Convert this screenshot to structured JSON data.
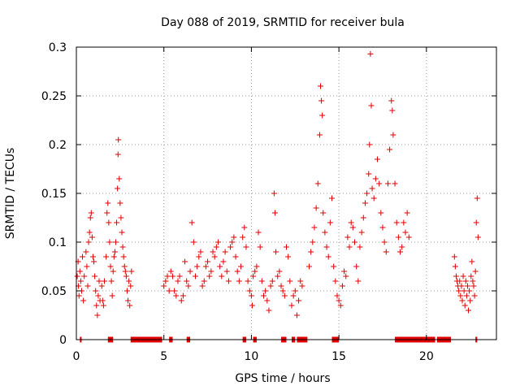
{
  "chart_data": {
    "type": "scatter",
    "title": "Day 088 of 2019, SRMTID for receiver bula",
    "xlabel": "GPS time / hours",
    "ylabel": "SRMTID / TECUs",
    "xlim": [
      0,
      24
    ],
    "ylim": [
      0,
      0.3
    ],
    "xticks": [
      0,
      5,
      10,
      15,
      20
    ],
    "yticks": [
      0,
      0.05,
      0.1,
      0.15,
      0.2,
      0.25,
      0.3
    ],
    "xtick_labels": [
      "0",
      "5",
      "10",
      "15",
      "20"
    ],
    "ytick_labels": [
      "0",
      "0.05",
      "0.1",
      "0.15",
      "0.2",
      "0.25",
      "0.3"
    ],
    "grid": true,
    "marker": "+",
    "color": "#e00000",
    "series": [
      {
        "name": "SRMTID",
        "points": [
          [
            0.05,
            0.065
          ],
          [
            0.1,
            0.08
          ],
          [
            0.12,
            0.055
          ],
          [
            0.15,
            0.045
          ],
          [
            0.2,
            0.07
          ],
          [
            0.25,
            0.06
          ],
          [
            0.3,
            0.05
          ],
          [
            0.35,
            0.085
          ],
          [
            0.4,
            0.04
          ],
          [
            0.45,
            0.065
          ],
          [
            0.55,
            0.09
          ],
          [
            0.6,
            0.075
          ],
          [
            0.65,
            0.055
          ],
          [
            0.7,
            0.1
          ],
          [
            0.75,
            0.11
          ],
          [
            0.8,
            0.125
          ],
          [
            0.85,
            0.13
          ],
          [
            0.9,
            0.105
          ],
          [
            0.95,
            0.085
          ],
          [
            1.0,
            0.08
          ],
          [
            1.05,
            0.065
          ],
          [
            1.1,
            0.05
          ],
          [
            1.15,
            0.035
          ],
          [
            1.2,
            0.025
          ],
          [
            1.25,
            0.045
          ],
          [
            1.3,
            0.06
          ],
          [
            1.35,
            0.04
          ],
          [
            1.45,
            0.055
          ],
          [
            1.5,
            0.04
          ],
          [
            1.55,
            0.035
          ],
          [
            1.6,
            0.06
          ],
          [
            1.7,
            0.085
          ],
          [
            1.75,
            0.13
          ],
          [
            1.8,
            0.14
          ],
          [
            1.85,
            0.12
          ],
          [
            1.9,
            0.1
          ],
          [
            1.95,
            0.075
          ],
          [
            2.0,
            0.06
          ],
          [
            2.05,
            0.045
          ],
          [
            2.1,
            0.07
          ],
          [
            2.15,
            0.085
          ],
          [
            2.2,
            0.09
          ],
          [
            2.25,
            0.1
          ],
          [
            2.3,
            0.12
          ],
          [
            2.35,
            0.155
          ],
          [
            2.38,
            0.19
          ],
          [
            2.4,
            0.205
          ],
          [
            2.45,
            0.165
          ],
          [
            2.5,
            0.14
          ],
          [
            2.55,
            0.125
          ],
          [
            2.6,
            0.11
          ],
          [
            2.65,
            0.095
          ],
          [
            2.7,
            0.085
          ],
          [
            2.75,
            0.075
          ],
          [
            2.8,
            0.07
          ],
          [
            2.85,
            0.065
          ],
          [
            2.9,
            0.05
          ],
          [
            2.95,
            0.04
          ],
          [
            3.0,
            0.06
          ],
          [
            3.05,
            0.035
          ],
          [
            3.1,
            0.055
          ],
          [
            3.15,
            0.07
          ],
          [
            5.0,
            0.055
          ],
          [
            5.1,
            0.06
          ],
          [
            5.2,
            0.065
          ],
          [
            5.3,
            0.05
          ],
          [
            5.4,
            0.07
          ],
          [
            5.5,
            0.065
          ],
          [
            5.6,
            0.05
          ],
          [
            5.7,
            0.045
          ],
          [
            5.8,
            0.06
          ],
          [
            5.9,
            0.065
          ],
          [
            6.0,
            0.04
          ],
          [
            6.1,
            0.045
          ],
          [
            6.2,
            0.08
          ],
          [
            6.3,
            0.06
          ],
          [
            6.4,
            0.055
          ],
          [
            6.5,
            0.07
          ],
          [
            6.6,
            0.12
          ],
          [
            6.7,
            0.1
          ],
          [
            6.8,
            0.065
          ],
          [
            6.9,
            0.075
          ],
          [
            7.0,
            0.085
          ],
          [
            7.1,
            0.09
          ],
          [
            7.2,
            0.055
          ],
          [
            7.3,
            0.06
          ],
          [
            7.4,
            0.075
          ],
          [
            7.5,
            0.08
          ],
          [
            7.6,
            0.065
          ],
          [
            7.7,
            0.07
          ],
          [
            7.8,
            0.09
          ],
          [
            7.9,
            0.085
          ],
          [
            8.0,
            0.095
          ],
          [
            8.1,
            0.1
          ],
          [
            8.2,
            0.075
          ],
          [
            8.3,
            0.065
          ],
          [
            8.4,
            0.08
          ],
          [
            8.5,
            0.09
          ],
          [
            8.6,
            0.07
          ],
          [
            8.7,
            0.06
          ],
          [
            8.8,
            0.095
          ],
          [
            8.9,
            0.1
          ],
          [
            9.0,
            0.105
          ],
          [
            9.1,
            0.085
          ],
          [
            9.2,
            0.07
          ],
          [
            9.3,
            0.06
          ],
          [
            9.4,
            0.075
          ],
          [
            9.5,
            0.105
          ],
          [
            9.6,
            0.115
          ],
          [
            9.7,
            0.095
          ],
          [
            9.8,
            0.06
          ],
          [
            9.9,
            0.05
          ],
          [
            10.0,
            0.045
          ],
          [
            10.05,
            0.035
          ],
          [
            10.1,
            0.065
          ],
          [
            10.2,
            0.07
          ],
          [
            10.3,
            0.075
          ],
          [
            10.4,
            0.11
          ],
          [
            10.5,
            0.095
          ],
          [
            10.6,
            0.06
          ],
          [
            10.7,
            0.045
          ],
          [
            10.8,
            0.05
          ],
          [
            10.9,
            0.04
          ],
          [
            11.0,
            0.03
          ],
          [
            11.1,
            0.055
          ],
          [
            11.2,
            0.06
          ],
          [
            11.3,
            0.15
          ],
          [
            11.35,
            0.13
          ],
          [
            11.4,
            0.09
          ],
          [
            11.5,
            0.065
          ],
          [
            11.6,
            0.07
          ],
          [
            11.7,
            0.055
          ],
          [
            11.8,
            0.05
          ],
          [
            11.9,
            0.045
          ],
          [
            12.0,
            0.095
          ],
          [
            12.1,
            0.085
          ],
          [
            12.2,
            0.06
          ],
          [
            12.3,
            0.035
          ],
          [
            12.4,
            0.045
          ],
          [
            12.5,
            0.05
          ],
          [
            12.6,
            0.025
          ],
          [
            12.7,
            0.04
          ],
          [
            12.8,
            0.06
          ],
          [
            12.9,
            0.055
          ],
          [
            13.3,
            0.075
          ],
          [
            13.4,
            0.09
          ],
          [
            13.5,
            0.1
          ],
          [
            13.6,
            0.115
          ],
          [
            13.7,
            0.135
          ],
          [
            13.8,
            0.16
          ],
          [
            13.9,
            0.21
          ],
          [
            13.95,
            0.26
          ],
          [
            14.0,
            0.245
          ],
          [
            14.05,
            0.23
          ],
          [
            14.1,
            0.13
          ],
          [
            14.2,
            0.11
          ],
          [
            14.3,
            0.095
          ],
          [
            14.4,
            0.085
          ],
          [
            14.5,
            0.12
          ],
          [
            14.6,
            0.145
          ],
          [
            14.7,
            0.075
          ],
          [
            14.8,
            0.06
          ],
          [
            14.9,
            0.045
          ],
          [
            15.0,
            0.04
          ],
          [
            15.1,
            0.035
          ],
          [
            15.2,
            0.055
          ],
          [
            15.3,
            0.07
          ],
          [
            15.4,
            0.065
          ],
          [
            15.5,
            0.105
          ],
          [
            15.6,
            0.095
          ],
          [
            15.7,
            0.12
          ],
          [
            15.8,
            0.115
          ],
          [
            15.9,
            0.1
          ],
          [
            16.0,
            0.075
          ],
          [
            16.1,
            0.06
          ],
          [
            16.2,
            0.095
          ],
          [
            16.3,
            0.11
          ],
          [
            16.4,
            0.125
          ],
          [
            16.5,
            0.14
          ],
          [
            16.6,
            0.15
          ],
          [
            16.7,
            0.17
          ],
          [
            16.75,
            0.2
          ],
          [
            16.8,
            0.293
          ],
          [
            16.85,
            0.24
          ],
          [
            16.9,
            0.155
          ],
          [
            17.0,
            0.145
          ],
          [
            17.1,
            0.165
          ],
          [
            17.2,
            0.185
          ],
          [
            17.3,
            0.16
          ],
          [
            17.4,
            0.13
          ],
          [
            17.5,
            0.115
          ],
          [
            17.6,
            0.1
          ],
          [
            17.7,
            0.09
          ],
          [
            17.8,
            0.16
          ],
          [
            17.9,
            0.195
          ],
          [
            18.0,
            0.245
          ],
          [
            18.05,
            0.235
          ],
          [
            18.1,
            0.21
          ],
          [
            18.2,
            0.16
          ],
          [
            18.3,
            0.12
          ],
          [
            18.4,
            0.105
          ],
          [
            18.5,
            0.09
          ],
          [
            18.6,
            0.095
          ],
          [
            18.7,
            0.12
          ],
          [
            18.8,
            0.11
          ],
          [
            18.9,
            0.13
          ],
          [
            19.0,
            0.105
          ],
          [
            21.6,
            0.085
          ],
          [
            21.65,
            0.075
          ],
          [
            21.7,
            0.065
          ],
          [
            21.75,
            0.06
          ],
          [
            21.8,
            0.055
          ],
          [
            21.85,
            0.05
          ],
          [
            21.9,
            0.06
          ],
          [
            21.95,
            0.045
          ],
          [
            22.0,
            0.055
          ],
          [
            22.05,
            0.04
          ],
          [
            22.1,
            0.065
          ],
          [
            22.15,
            0.05
          ],
          [
            22.2,
            0.035
          ],
          [
            22.25,
            0.06
          ],
          [
            22.3,
            0.045
          ],
          [
            22.35,
            0.055
          ],
          [
            22.4,
            0.03
          ],
          [
            22.45,
            0.05
          ],
          [
            22.5,
            0.04
          ],
          [
            22.55,
            0.065
          ],
          [
            22.6,
            0.08
          ],
          [
            22.65,
            0.06
          ],
          [
            22.7,
            0.055
          ],
          [
            22.75,
            0.045
          ],
          [
            22.8,
            0.07
          ],
          [
            22.85,
            0.12
          ],
          [
            22.9,
            0.145
          ],
          [
            22.95,
            0.105
          ]
        ],
        "zero_ranges": [
          [
            0.2,
            0.3
          ],
          [
            1.8,
            2.1
          ],
          [
            3.1,
            4.9
          ],
          [
            5.3,
            5.5
          ],
          [
            6.3,
            6.5
          ],
          [
            9.5,
            9.7
          ],
          [
            10.1,
            10.3
          ],
          [
            11.7,
            12.0
          ],
          [
            12.3,
            12.5
          ],
          [
            12.6,
            13.2
          ],
          [
            14.6,
            15.0
          ],
          [
            18.2,
            20.5
          ],
          [
            20.6,
            21.4
          ],
          [
            22.8,
            22.9
          ]
        ]
      }
    ]
  }
}
